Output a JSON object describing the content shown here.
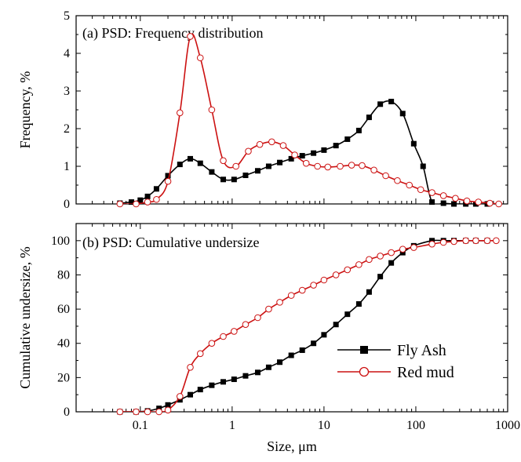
{
  "chart_data": [
    {
      "type": "line",
      "panel_label": "(a) PSD: Frequency distribution",
      "xlabel": "",
      "ylabel": "Frequency, %",
      "xscale": "log",
      "xlim": [
        0.02,
        1000
      ],
      "ylim": [
        0,
        5
      ],
      "yticks": [
        0,
        1,
        2,
        3,
        4,
        5
      ],
      "xticks": [],
      "grid": false,
      "series": [
        {
          "name": "Fly Ash",
          "marker": "square-filled",
          "color": "#000000",
          "x": [
            0.06,
            0.08,
            0.1,
            0.12,
            0.15,
            0.2,
            0.27,
            0.35,
            0.45,
            0.6,
            0.8,
            1.05,
            1.4,
            1.9,
            2.5,
            3.3,
            4.4,
            5.8,
            7.7,
            10,
            13.5,
            18,
            24,
            31,
            41,
            54,
            72,
            95,
            120,
            150,
            200,
            260,
            350,
            450,
            600
          ],
          "y": [
            0.02,
            0.05,
            0.1,
            0.2,
            0.4,
            0.75,
            1.05,
            1.2,
            1.08,
            0.85,
            0.65,
            0.65,
            0.76,
            0.88,
            1.0,
            1.1,
            1.2,
            1.28,
            1.35,
            1.43,
            1.55,
            1.72,
            1.95,
            2.3,
            2.65,
            2.72,
            2.4,
            1.6,
            1.0,
            0.05,
            0.02,
            0.0,
            0.0,
            0.0,
            0.0
          ]
        },
        {
          "name": "Red mud",
          "marker": "circle-open",
          "color": "#cc1111",
          "x": [
            0.06,
            0.09,
            0.12,
            0.15,
            0.2,
            0.27,
            0.35,
            0.45,
            0.6,
            0.8,
            1.1,
            1.5,
            2.0,
            2.7,
            3.6,
            4.8,
            6.4,
            8.5,
            11,
            15,
            20,
            26,
            35,
            47,
            63,
            85,
            113,
            150,
            200,
            270,
            360,
            480,
            640,
            800
          ],
          "y": [
            0.0,
            0.0,
            0.05,
            0.12,
            0.6,
            2.42,
            4.45,
            3.88,
            2.5,
            1.15,
            1.0,
            1.4,
            1.58,
            1.65,
            1.55,
            1.3,
            1.08,
            1.0,
            0.98,
            1.0,
            1.03,
            1.02,
            0.9,
            0.75,
            0.62,
            0.5,
            0.38,
            0.3,
            0.22,
            0.15,
            0.08,
            0.05,
            0.02,
            0.0
          ]
        }
      ]
    },
    {
      "type": "line",
      "panel_label": "(b) PSD: Cumulative undersize",
      "xlabel": "Size, μm",
      "ylabel": "Cumulative undersize, %",
      "xscale": "log",
      "xlim": [
        0.02,
        1000
      ],
      "ylim": [
        0,
        110
      ],
      "yticks": [
        0,
        20,
        40,
        60,
        80,
        100
      ],
      "xticks": [
        0.1,
        1,
        10,
        100,
        1000
      ],
      "xticklabels": [
        "0.1",
        "1",
        "10",
        "100",
        "1000"
      ],
      "legend": "bottom-right",
      "grid": false,
      "series": [
        {
          "name": "Fly Ash",
          "marker": "square-filled",
          "color": "#000000",
          "x": [
            0.06,
            0.09,
            0.12,
            0.16,
            0.2,
            0.27,
            0.35,
            0.45,
            0.6,
            0.8,
            1.05,
            1.4,
            1.9,
            2.5,
            3.3,
            4.4,
            5.8,
            7.7,
            10,
            13.5,
            18,
            24,
            31,
            41,
            54,
            72,
            95,
            150,
            200,
            260,
            350,
            450,
            600
          ],
          "y": [
            0,
            0,
            0.5,
            2,
            4,
            7,
            10,
            13,
            15.5,
            17.5,
            19,
            21,
            23,
            26,
            29,
            33,
            36,
            40,
            45,
            51,
            57,
            63,
            70,
            79,
            87,
            93,
            97,
            100,
            100,
            100,
            100,
            100,
            100
          ]
        },
        {
          "name": "Red mud",
          "marker": "circle-open",
          "color": "#cc1111",
          "x": [
            0.06,
            0.09,
            0.12,
            0.16,
            0.2,
            0.27,
            0.35,
            0.45,
            0.6,
            0.8,
            1.05,
            1.4,
            1.9,
            2.5,
            3.3,
            4.4,
            5.8,
            7.7,
            10,
            13.5,
            18,
            24,
            31,
            41,
            54,
            72,
            95,
            150,
            200,
            260,
            350,
            450,
            600,
            750
          ],
          "y": [
            0,
            0,
            0,
            0,
            1,
            9,
            26,
            34,
            40,
            44,
            47,
            51,
            55,
            60,
            64,
            68,
            71,
            74,
            77,
            80,
            83,
            86,
            89,
            91,
            93,
            95,
            96,
            98,
            99,
            99.5,
            100,
            100,
            100,
            100
          ]
        }
      ]
    }
  ],
  "colors": {
    "fly_ash": "#000000",
    "red_mud": "#cc1111"
  }
}
